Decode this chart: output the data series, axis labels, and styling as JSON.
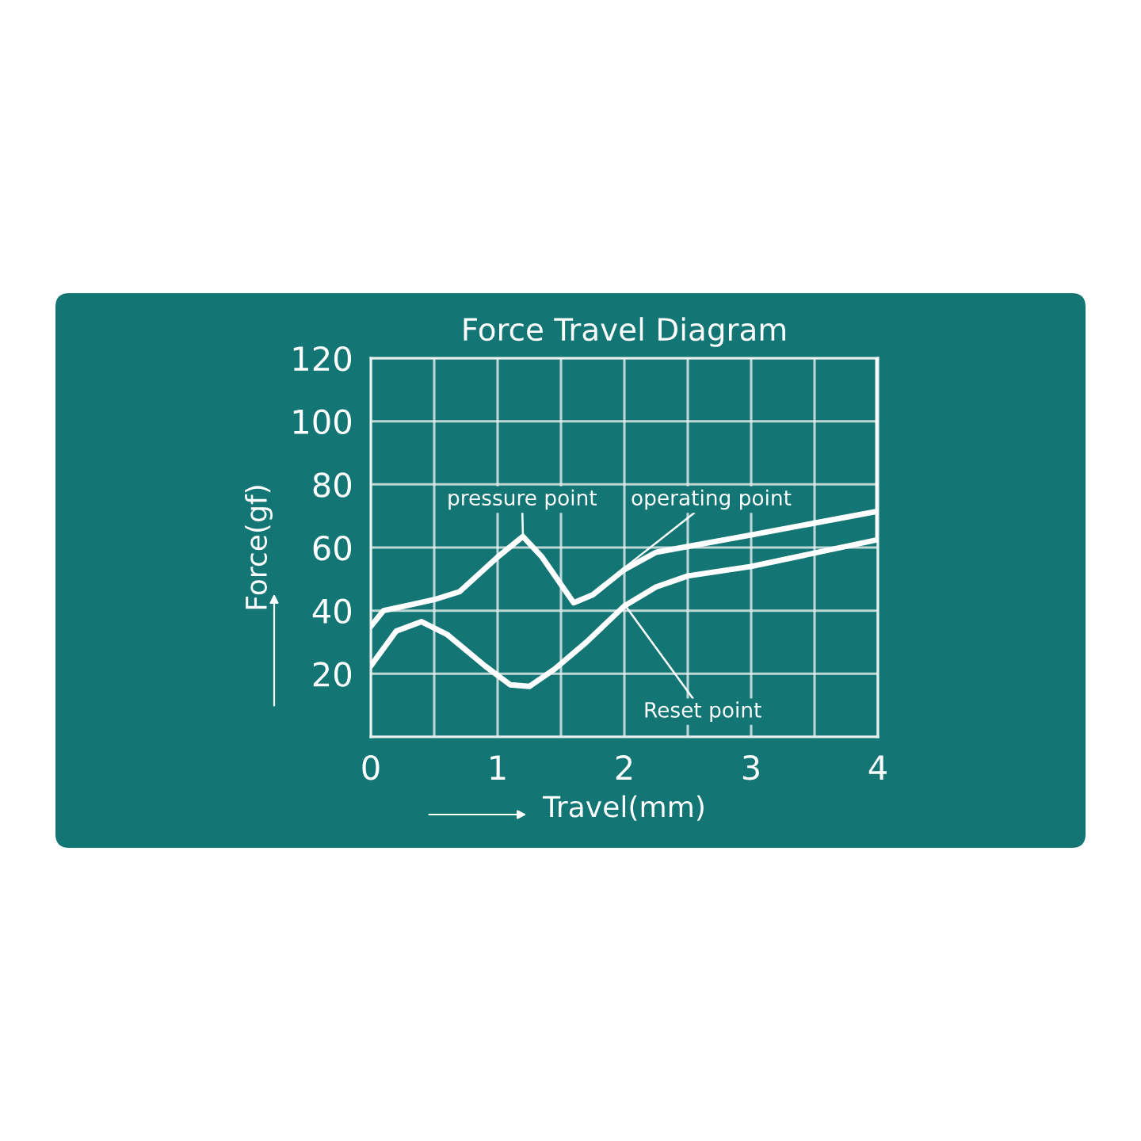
{
  "chart_data": {
    "type": "line",
    "title": "Force Travel Diagram",
    "xlabel": "Travel(mm)",
    "ylabel": "Force(gf)",
    "series": [
      {
        "color": "#ffffff",
        "x": [
          0,
          0.1,
          0.5,
          0.7,
          1.0,
          1.2,
          1.35,
          1.6,
          1.75,
          2.0,
          2.25,
          3.0,
          4.0,
          4.0
        ],
        "values": [
          35,
          40,
          43.5,
          46,
          57,
          63.5,
          57,
          42.5,
          45,
          53,
          58.5,
          64,
          71.5,
          120
        ]
      },
      {
        "color": "#ffffff",
        "x": [
          0,
          0.2,
          0.4,
          0.6,
          0.9,
          1.1,
          1.25,
          1.45,
          1.7,
          2.0,
          2.25,
          2.5,
          3.0,
          4.0,
          4.0
        ],
        "values": [
          22.5,
          33.5,
          36.5,
          32.5,
          22.5,
          16.5,
          16,
          21.5,
          30,
          41.5,
          47.5,
          51,
          54,
          62.5,
          71.5
        ]
      }
    ],
    "annotations": [
      {
        "text": "pressure point",
        "x": 1.2,
        "y": 63.5
      },
      {
        "text": "operating point",
        "x": 1.95,
        "y": 52
      },
      {
        "text": "Reset point",
        "x": 2.0,
        "y": 42
      }
    ],
    "xlim": [
      0,
      4
    ],
    "ylim": [
      0,
      120
    ],
    "xticks": [
      0,
      {
        "value": 0.5,
        "label": null
      },
      1,
      {
        "value": 1.5,
        "label": null
      },
      2,
      {
        "value": 2.5,
        "label": null
      },
      3,
      {
        "value": 3.5,
        "label": null
      },
      4
    ],
    "yticks": [
      {
        "value": 0,
        "label": null
      },
      20,
      40,
      60,
      80,
      100,
      120
    ],
    "grid": true,
    "legend": false,
    "line_style": "solid",
    "marker": "none"
  }
}
